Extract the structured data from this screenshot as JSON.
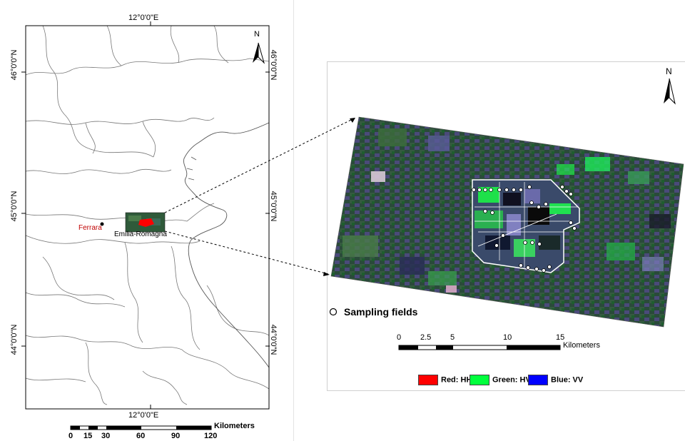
{
  "left_map": {
    "top_longitude": "12°0'0\"E",
    "bottom_longitude": "12°0'0\"E",
    "latitudes": [
      "46°0'0\"N",
      "45°0'0\"N",
      "44°0'0\"N"
    ],
    "north_label": "N",
    "city_label": "Ferrara",
    "region_label": "Emilia-Romagna",
    "scale_ticks": [
      "0",
      "15",
      "30",
      "60",
      "90",
      "120"
    ],
    "scale_unit": "Kilometers"
  },
  "right_panel": {
    "north_label": "N",
    "sampling_label": "Sampling fields",
    "scale_ticks": [
      "0",
      "2.5",
      "5",
      "10",
      "15"
    ],
    "scale_unit": "Kilometers",
    "legend": [
      {
        "label": "Red: HH",
        "color": "#ff0000"
      },
      {
        "label": "Green: HV",
        "color": "#00ff3c"
      },
      {
        "label": "Blue: VV",
        "color": "#0000ff"
      }
    ]
  },
  "colors": {
    "city": "#c00000",
    "study_area": "#ff0000"
  }
}
